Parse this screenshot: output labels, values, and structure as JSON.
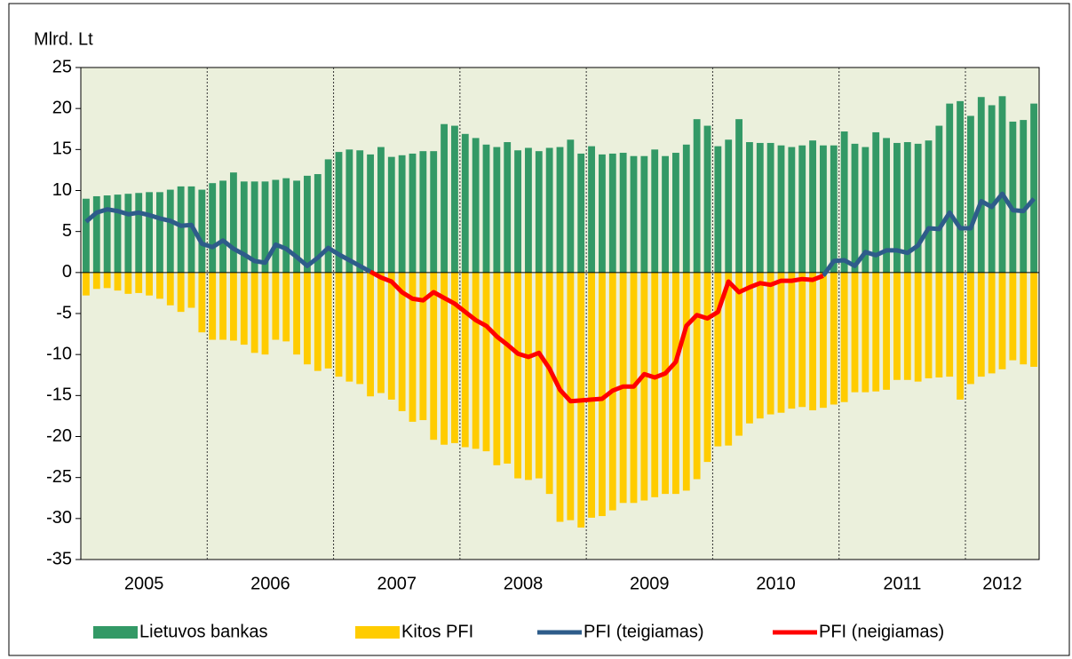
{
  "chart_data": {
    "type": "bar_line",
    "y_label": "Mlrd. Lt",
    "x_labels": [
      "2005",
      "2006",
      "2007",
      "2008",
      "2009",
      "2010",
      "2011",
      "2012"
    ],
    "ylim": [
      -35,
      25
    ],
    "yticks": [
      -35,
      -30,
      -25,
      -20,
      -15,
      -10,
      -5,
      0,
      5,
      10,
      15,
      20,
      25
    ],
    "series": [
      {
        "name": "Lietuvos bankas",
        "color": "#339966",
        "kind": "bar",
        "values": [
          9.0,
          9.3,
          9.4,
          9.5,
          9.6,
          9.7,
          9.8,
          9.8,
          10.1,
          10.5,
          10.5,
          10.1,
          10.9,
          11.2,
          12.2,
          11.1,
          11.1,
          11.1,
          11.3,
          11.5,
          11.2,
          11.8,
          12.0,
          13.8,
          14.7,
          15.0,
          14.9,
          14.4,
          15.3,
          14.1,
          14.3,
          14.5,
          14.8,
          14.8,
          18.1,
          17.9,
          16.9,
          16.4,
          15.6,
          15.3,
          15.9,
          14.9,
          15.2,
          14.8,
          15.2,
          15.3,
          16.2,
          14.5,
          15.4,
          14.4,
          14.5,
          14.6,
          14.2,
          14.2,
          15.0,
          14.2,
          14.6,
          15.6,
          18.7,
          17.9,
          15.4,
          16.2,
          18.7,
          15.9,
          15.8,
          15.8,
          15.5,
          15.3,
          15.5,
          16.1,
          15.5,
          15.5,
          17.2,
          15.7,
          15.3,
          17.1,
          16.4,
          15.8,
          15.9,
          15.7,
          16.1,
          17.9,
          20.6,
          20.9,
          19.1,
          21.4,
          20.4,
          21.5,
          18.4,
          18.6,
          20.6
        ]
      },
      {
        "name": "Kitos PFI",
        "color": "#ffcc00",
        "kind": "bar",
        "values": [
          -2.8,
          -2.0,
          -1.9,
          -2.2,
          -2.6,
          -2.5,
          -2.8,
          -3.2,
          -4.0,
          -4.8,
          -4.3,
          -7.3,
          -8.2,
          -8.2,
          -8.3,
          -8.8,
          -9.8,
          -10.0,
          -8.2,
          -8.4,
          -10.0,
          -11.2,
          -12.0,
          -11.7,
          -12.7,
          -13.3,
          -13.6,
          -15.1,
          -14.7,
          -15.5,
          -16.9,
          -18.2,
          -18.0,
          -20.4,
          -21.0,
          -20.8,
          -21.3,
          -21.5,
          -21.8,
          -23.5,
          -23.3,
          -25.1,
          -25.3,
          -25.1,
          -27.0,
          -30.4,
          -30.2,
          -31.1,
          -29.9,
          -29.7,
          -29.0,
          -28.1,
          -28.1,
          -27.8,
          -27.4,
          -27.0,
          -27.0,
          -26.6,
          -25.2,
          -23.1,
          -21.2,
          -21.1,
          -19.9,
          -18.4,
          -17.8,
          -17.3,
          -17.1,
          -16.6,
          -16.4,
          -16.8,
          -16.5,
          -16.1,
          -15.8,
          -14.6,
          -14.6,
          -14.5,
          -14.3,
          -13.1,
          -13.1,
          -13.3,
          -12.9,
          -12.8,
          -12.7,
          -15.5,
          -13.6,
          -12.7,
          -12.3,
          -11.8,
          -10.7,
          -11.2,
          -11.5
        ]
      },
      {
        "name": "PFI (teigiamas)",
        "color": "#2e5c8a",
        "kind": "line",
        "values": [
          6.2,
          7.3,
          7.7,
          7.5,
          7.1,
          7.3,
          7.0,
          6.6,
          6.3,
          5.7,
          5.8,
          3.5,
          3.1,
          3.9,
          2.9,
          2.2,
          1.4,
          1.2,
          3.4,
          2.9,
          1.9,
          0.8,
          1.8,
          3.0,
          2.2,
          1.5,
          0.8,
          0.1,
          null,
          null,
          null,
          null,
          null,
          null,
          null,
          null,
          null,
          null,
          null,
          null,
          null,
          null,
          null,
          null,
          null,
          null,
          null,
          null,
          null,
          null,
          null,
          null,
          null,
          null,
          null,
          null,
          null,
          null,
          null,
          null,
          null,
          null,
          null,
          null,
          null,
          null,
          null,
          null,
          null,
          null,
          -0.4,
          1.4,
          1.5,
          0.8,
          2.5,
          2.1,
          2.7,
          2.7,
          2.4,
          3.3,
          5.4,
          5.3,
          7.3,
          5.4,
          5.4,
          8.7,
          8.0,
          9.6,
          7.6,
          7.5,
          9.0
        ]
      },
      {
        "name": "PFI (neigiamas)",
        "color": "#ff0000",
        "kind": "line",
        "values": [
          null,
          null,
          null,
          null,
          null,
          null,
          null,
          null,
          null,
          null,
          null,
          null,
          null,
          null,
          null,
          null,
          null,
          null,
          null,
          null,
          null,
          null,
          null,
          null,
          null,
          null,
          null,
          0.1,
          -0.6,
          -1.1,
          -2.4,
          -3.2,
          -3.4,
          -2.4,
          -3.1,
          -3.8,
          -4.8,
          -5.8,
          -6.5,
          -7.8,
          -8.8,
          -9.9,
          -10.3,
          -9.8,
          -11.7,
          -14.3,
          -15.7,
          -15.6,
          -15.5,
          -15.4,
          -14.4,
          -13.9,
          -13.9,
          -12.4,
          -12.8,
          -12.3,
          -10.9,
          -6.5,
          -5.2,
          -5.6,
          -4.8,
          -1.1,
          -2.4,
          -1.8,
          -1.3,
          -1.5,
          -1.0,
          -1.0,
          -0.8,
          -0.9,
          -0.4,
          null,
          null,
          null,
          null,
          null,
          null,
          null,
          null,
          null,
          null,
          null,
          null,
          null,
          null,
          null,
          null,
          null,
          null,
          null,
          null
        ]
      }
    ]
  }
}
